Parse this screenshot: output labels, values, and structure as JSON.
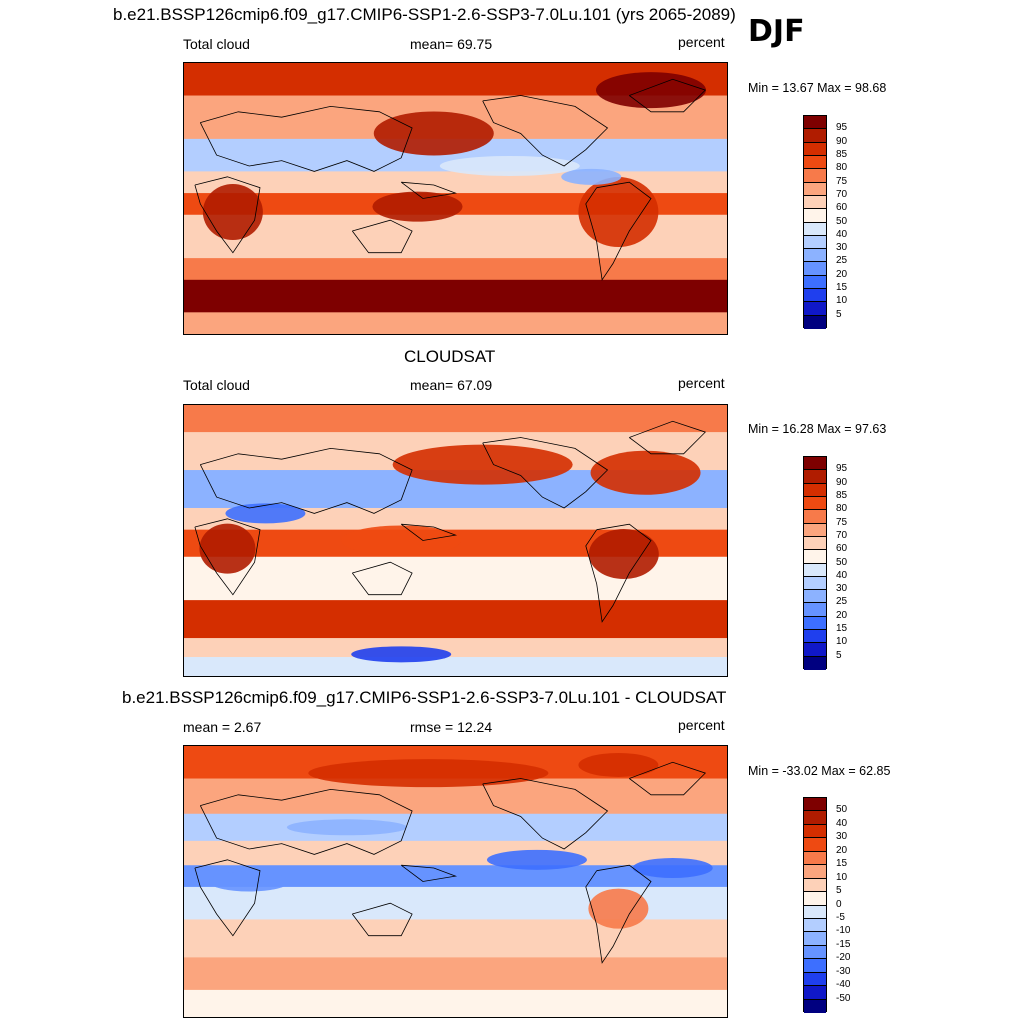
{
  "season": "DJF",
  "panels": [
    {
      "title": "b.e21.BSSP126cmip6.f09_g17.CMIP6-SSP1-2.6-SSP3-7.0Lu.101 (yrs 2065-2089)",
      "left_label": "Total cloud",
      "center_label": "mean=  69.75",
      "right_label": "percent",
      "minmax": "Min =  13.67 Max =  98.68",
      "colorbar": {
        "labels": [
          "95",
          "90",
          "85",
          "80",
          "75",
          "70",
          "60",
          "50",
          "40",
          "30",
          "25",
          "20",
          "15",
          "10",
          "5"
        ],
        "colors": [
          "#7e0000",
          "#b01c00",
          "#d42e00",
          "#ee4a12",
          "#f77a4a",
          "#fba57e",
          "#fdd1b8",
          "#fff4ea",
          "#d9e8fb",
          "#b3ceff",
          "#8cb2ff",
          "#6693ff",
          "#3d6fff",
          "#1f3fee",
          "#1018c8",
          "#000080"
        ]
      },
      "map_style": "model"
    },
    {
      "title": "CLOUDSAT",
      "left_label": "Total cloud",
      "center_label": "mean=  67.09",
      "right_label": "percent",
      "minmax": "Min =  16.28 Max =  97.63",
      "colorbar": {
        "labels": [
          "95",
          "90",
          "85",
          "80",
          "75",
          "70",
          "60",
          "50",
          "40",
          "30",
          "25",
          "20",
          "15",
          "10",
          "5"
        ],
        "colors": [
          "#7e0000",
          "#b01c00",
          "#d42e00",
          "#ee4a12",
          "#f77a4a",
          "#fba57e",
          "#fdd1b8",
          "#fff4ea",
          "#d9e8fb",
          "#b3ceff",
          "#8cb2ff",
          "#6693ff",
          "#3d6fff",
          "#1f3fee",
          "#1018c8",
          "#000080"
        ]
      },
      "map_style": "obs"
    },
    {
      "title": "b.e21.BSSP126cmip6.f09_g17.CMIP6-SSP1-2.6-SSP3-7.0Lu.101 - CLOUDSAT",
      "left_label": "mean =   2.67",
      "center_label": "rmse =  12.24",
      "right_label": "percent",
      "minmax": "Min = -33.02 Max =  62.85",
      "colorbar": {
        "labels": [
          "50",
          "40",
          "30",
          "20",
          "15",
          "10",
          "5",
          "0",
          "-5",
          "-10",
          "-15",
          "-20",
          "-30",
          "-40",
          "-50"
        ],
        "colors": [
          "#7e0000",
          "#b01c00",
          "#d42e00",
          "#ee4a12",
          "#f77a4a",
          "#fba57e",
          "#fdd1b8",
          "#fff4ea",
          "#d9e8fb",
          "#b3ceff",
          "#8cb2ff",
          "#6693ff",
          "#3d6fff",
          "#1f3fee",
          "#1018c8",
          "#000080"
        ]
      },
      "map_style": "diff"
    }
  ]
}
